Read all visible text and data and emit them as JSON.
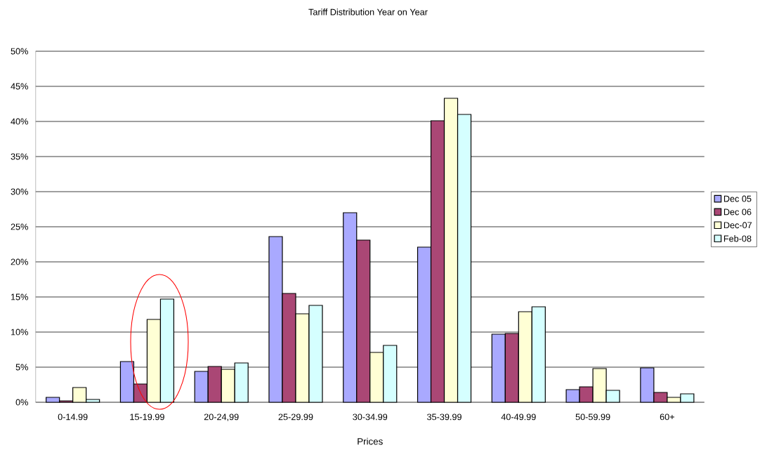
{
  "chart_data": {
    "type": "bar",
    "title": "Tariff Distribution Year on Year",
    "xlabel": "Prices",
    "categories": [
      "0-14.99",
      "15-19.99",
      "20-24,99",
      "25-29.99",
      "30-34.99",
      "35-39.99",
      "40-49.99",
      "50-59.99",
      "60+"
    ],
    "series": [
      {
        "name": "Dec 05",
        "color": "#a9a9ff",
        "values": [
          0.7,
          5.8,
          4.4,
          23.6,
          27.0,
          22.1,
          9.7,
          1.8,
          4.9
        ]
      },
      {
        "name": "Dec 06",
        "color": "#aa4775",
        "values": [
          0.2,
          2.6,
          5.1,
          15.5,
          23.1,
          40.1,
          9.8,
          2.2,
          1.4
        ]
      },
      {
        "name": "Dec-07",
        "color": "#ffffd5",
        "values": [
          2.1,
          11.8,
          4.7,
          12.6,
          7.1,
          43.3,
          12.9,
          4.8,
          0.7
        ]
      },
      {
        "name": "Feb-08",
        "color": "#d5ffff",
        "values": [
          0.4,
          14.7,
          5.6,
          13.8,
          8.1,
          41.0,
          13.6,
          1.7,
          1.2
        ]
      }
    ],
    "ylim": [
      0,
      50
    ],
    "yticks": [
      {
        "value": 0,
        "label": "0%"
      },
      {
        "value": 5,
        "label": "5%"
      },
      {
        "value": 10,
        "label": "10%"
      },
      {
        "value": 15,
        "label": "15%"
      },
      {
        "value": 20,
        "label": "20%"
      },
      {
        "value": 25,
        "label": "25%"
      },
      {
        "value": 30,
        "label": "30%"
      },
      {
        "value": 35,
        "label": "35%"
      },
      {
        "value": 40,
        "label": "40%"
      },
      {
        "value": 45,
        "label": "45%"
      },
      {
        "value": 50,
        "label": "50%"
      }
    ],
    "grid": "y",
    "legend": "right"
  }
}
